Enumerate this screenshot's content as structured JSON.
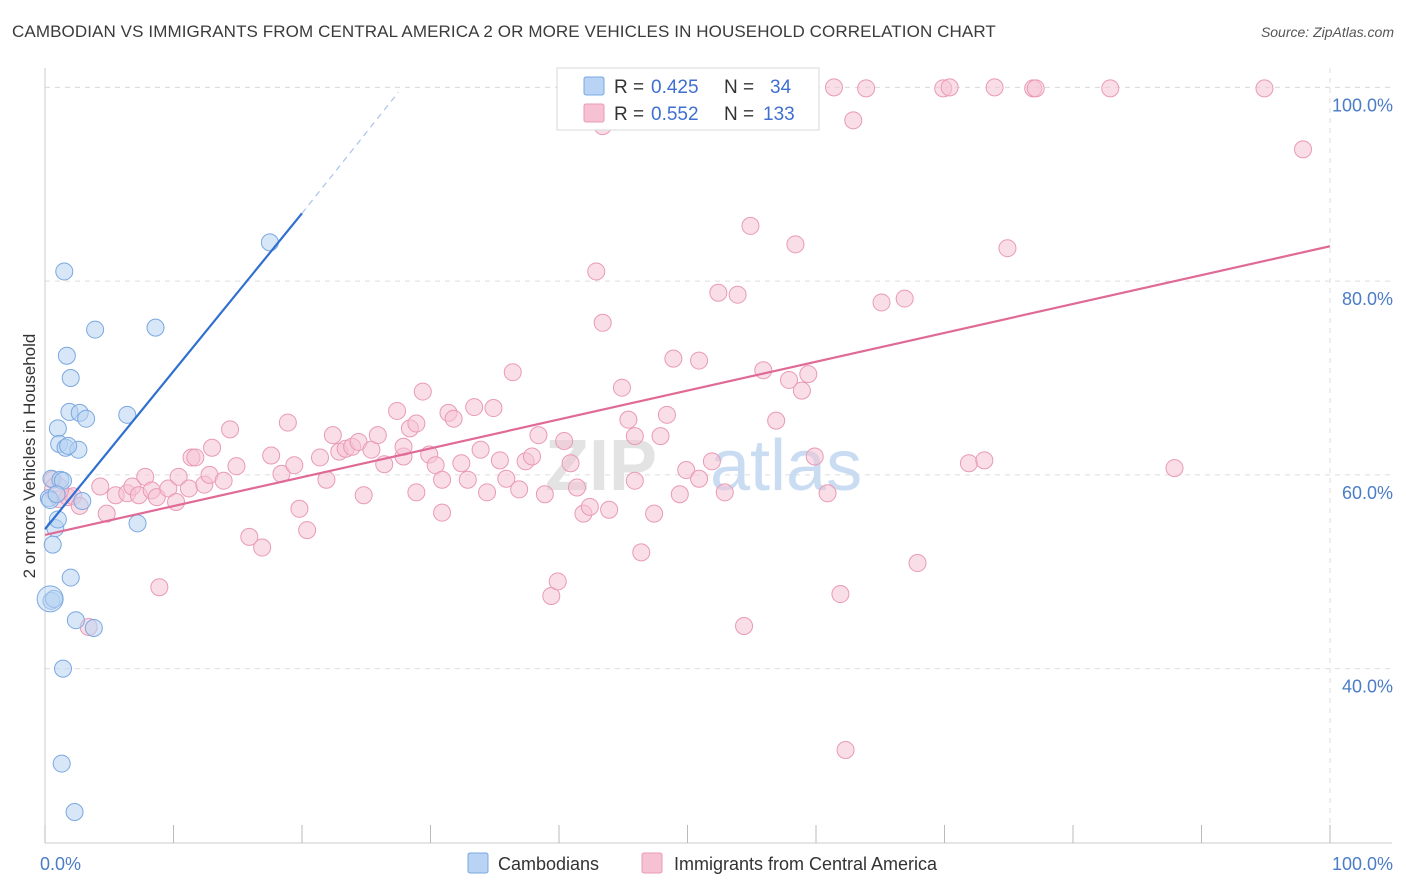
{
  "title": "CAMBODIAN VS IMMIGRANTS FROM CENTRAL AMERICA 2 OR MORE VEHICLES IN HOUSEHOLD CORRELATION CHART",
  "source": "Source: ZipAtlas.com",
  "watermark": {
    "zip": "ZIP",
    "atlas": "atlas"
  },
  "colors": {
    "blue_fill": "#b8d3f3",
    "blue_stroke": "#7aa8e0",
    "blue_line": "#2f6fd0",
    "pink_fill": "#f6c2d3",
    "pink_stroke": "#e99ab5",
    "pink_line": "#e06a96",
    "grid": "#dddddd",
    "axis_label": "#4a7cc7"
  },
  "legend": {
    "r_label": "R =",
    "n_label": "N =",
    "rows": [
      {
        "series": "Cambodians",
        "r": "0.425",
        "n": "34"
      },
      {
        "series": "Immigrants from Central America",
        "r": "0.552",
        "n": "133"
      }
    ]
  },
  "chart_data": {
    "type": "scatter",
    "title": "CAMBODIAN VS IMMIGRANTS FROM CENTRAL AMERICA 2 OR MORE VEHICLES IN HOUSEHOLD CORRELATION CHART",
    "xlabel": "",
    "ylabel": "2 or more Vehicles in Household",
    "xlim": [
      0,
      100
    ],
    "ylim": [
      22,
      102
    ],
    "x_tick_labels": [
      "0.0%",
      "100.0%"
    ],
    "y_ticks": [
      40,
      60,
      80,
      100
    ],
    "y_tick_labels": [
      "40.0%",
      "60.0%",
      "80.0%",
      "100.0%"
    ],
    "grid": true,
    "legend_position": "bottom",
    "series": [
      {
        "name": "Cambodians",
        "trend": {
          "x": [
            0,
            20
          ],
          "y": [
            54.4,
            87.0
          ],
          "dashed_to": [
            27.5,
            99.5
          ]
        },
        "points": [
          [
            0.3,
            57.6
          ],
          [
            0.4,
            57.4
          ],
          [
            0.5,
            59.6
          ],
          [
            0.6,
            52.8
          ],
          [
            0.8,
            54.5
          ],
          [
            1.0,
            55.4
          ],
          [
            1.0,
            64.8
          ],
          [
            1.1,
            63.2
          ],
          [
            1.2,
            59.5
          ],
          [
            1.4,
            59.4
          ],
          [
            1.5,
            81.0
          ],
          [
            1.6,
            62.8
          ],
          [
            1.7,
            72.3
          ],
          [
            2.0,
            70.0
          ],
          [
            1.9,
            66.5
          ],
          [
            2.0,
            49.4
          ],
          [
            2.4,
            45.0
          ],
          [
            2.6,
            62.6
          ],
          [
            2.7,
            66.4
          ],
          [
            2.9,
            57.3
          ],
          [
            3.2,
            65.8
          ],
          [
            3.8,
            44.2
          ],
          [
            3.9,
            75.0
          ],
          [
            6.4,
            66.2
          ],
          [
            7.2,
            55.0
          ],
          [
            8.6,
            75.2
          ],
          [
            17.5,
            84.0
          ],
          [
            1.8,
            63.0
          ],
          [
            0.5,
            47.0
          ],
          [
            0.7,
            47.2
          ],
          [
            1.4,
            40.0
          ],
          [
            1.3,
            30.2
          ],
          [
            2.3,
            25.2
          ],
          [
            0.9,
            58.0
          ]
        ]
      },
      {
        "name": "Immigrants from Central America",
        "trend": {
          "x": [
            0,
            100
          ],
          "y": [
            53.8,
            83.6
          ]
        },
        "points": [
          [
            0.6,
            59.5
          ],
          [
            1.1,
            57.5
          ],
          [
            1.8,
            57.7
          ],
          [
            2.2,
            57.8
          ],
          [
            2.7,
            56.8
          ],
          [
            3.4,
            44.3
          ],
          [
            4.3,
            58.8
          ],
          [
            4.8,
            56.0
          ],
          [
            5.5,
            57.9
          ],
          [
            6.4,
            58.1
          ],
          [
            6.8,
            58.8
          ],
          [
            7.3,
            57.9
          ],
          [
            7.8,
            59.8
          ],
          [
            8.3,
            58.4
          ],
          [
            8.7,
            57.7
          ],
          [
            8.9,
            48.4
          ],
          [
            9.6,
            58.6
          ],
          [
            10.2,
            57.2
          ],
          [
            10.4,
            59.8
          ],
          [
            11.2,
            58.6
          ],
          [
            11.4,
            61.8
          ],
          [
            11.7,
            61.8
          ],
          [
            12.4,
            59.0
          ],
          [
            12.8,
            60.0
          ],
          [
            13.0,
            62.8
          ],
          [
            13.9,
            59.4
          ],
          [
            14.4,
            64.7
          ],
          [
            14.9,
            60.9
          ],
          [
            15.9,
            53.6
          ],
          [
            16.9,
            52.5
          ],
          [
            17.6,
            62.0
          ],
          [
            18.4,
            60.1
          ],
          [
            18.9,
            65.4
          ],
          [
            19.4,
            61.0
          ],
          [
            19.8,
            56.5
          ],
          [
            20.4,
            54.3
          ],
          [
            21.4,
            61.8
          ],
          [
            21.9,
            59.5
          ],
          [
            22.4,
            64.1
          ],
          [
            22.9,
            62.4
          ],
          [
            23.4,
            62.7
          ],
          [
            23.9,
            62.9
          ],
          [
            24.4,
            63.4
          ],
          [
            24.8,
            57.9
          ],
          [
            25.4,
            62.6
          ],
          [
            25.9,
            64.1
          ],
          [
            26.4,
            61.1
          ],
          [
            27.4,
            66.6
          ],
          [
            27.9,
            61.9
          ],
          [
            27.9,
            62.9
          ],
          [
            28.4,
            64.8
          ],
          [
            28.9,
            65.3
          ],
          [
            28.9,
            58.2
          ],
          [
            29.4,
            68.6
          ],
          [
            29.9,
            62.1
          ],
          [
            30.4,
            61.0
          ],
          [
            30.9,
            59.5
          ],
          [
            30.9,
            56.1
          ],
          [
            31.4,
            66.4
          ],
          [
            31.8,
            65.8
          ],
          [
            32.4,
            61.2
          ],
          [
            32.9,
            59.5
          ],
          [
            33.4,
            67.0
          ],
          [
            33.9,
            62.6
          ],
          [
            34.4,
            58.2
          ],
          [
            34.9,
            66.9
          ],
          [
            35.4,
            61.5
          ],
          [
            35.9,
            59.6
          ],
          [
            36.4,
            70.6
          ],
          [
            36.9,
            58.5
          ],
          [
            37.4,
            61.4
          ],
          [
            37.9,
            61.9
          ],
          [
            38.4,
            64.1
          ],
          [
            38.9,
            58.0
          ],
          [
            39.4,
            47.5
          ],
          [
            39.9,
            49.0
          ],
          [
            40.4,
            63.5
          ],
          [
            40.9,
            61.2
          ],
          [
            41.4,
            58.7
          ],
          [
            41.9,
            56.0
          ],
          [
            42.4,
            56.7
          ],
          [
            42.9,
            81.0
          ],
          [
            43.4,
            75.7
          ],
          [
            43.9,
            56.4
          ],
          [
            44.9,
            69.0
          ],
          [
            45.4,
            65.7
          ],
          [
            45.9,
            64.0
          ],
          [
            45.9,
            59.4
          ],
          [
            46.4,
            52.0
          ],
          [
            47.4,
            56.0
          ],
          [
            47.9,
            64.0
          ],
          [
            48.4,
            66.2
          ],
          [
            48.9,
            72.0
          ],
          [
            49.4,
            58.0
          ],
          [
            49.9,
            60.5
          ],
          [
            50.9,
            71.8
          ],
          [
            50.9,
            59.6
          ],
          [
            51.9,
            61.4
          ],
          [
            52.4,
            78.8
          ],
          [
            52.9,
            58.2
          ],
          [
            53.9,
            78.6
          ],
          [
            54.9,
            85.7
          ],
          [
            54.4,
            44.4
          ],
          [
            55.9,
            70.8
          ],
          [
            56.9,
            65.6
          ],
          [
            57.9,
            69.8
          ],
          [
            58.4,
            83.8
          ],
          [
            58.9,
            68.7
          ],
          [
            59.4,
            70.4
          ],
          [
            59.9,
            61.9
          ],
          [
            60.9,
            58.1
          ],
          [
            61.9,
            47.7
          ],
          [
            62.3,
            31.6
          ],
          [
            62.9,
            96.6
          ],
          [
            63.9,
            99.9
          ],
          [
            65.1,
            77.8
          ],
          [
            66.9,
            78.2
          ],
          [
            67.9,
            50.9
          ],
          [
            69.9,
            99.9
          ],
          [
            71.9,
            61.2
          ],
          [
            73.1,
            61.5
          ],
          [
            74.9,
            83.4
          ],
          [
            76.9,
            99.9
          ],
          [
            77.1,
            99.9
          ],
          [
            82.9,
            99.9
          ],
          [
            87.9,
            60.7
          ],
          [
            94.9,
            99.9
          ],
          [
            97.9,
            93.6
          ],
          [
            55.4,
            100.0
          ],
          [
            61.4,
            100.0
          ],
          [
            73.9,
            100.0
          ],
          [
            70.4,
            100.0
          ],
          [
            43.4,
            96.0
          ]
        ]
      }
    ]
  }
}
